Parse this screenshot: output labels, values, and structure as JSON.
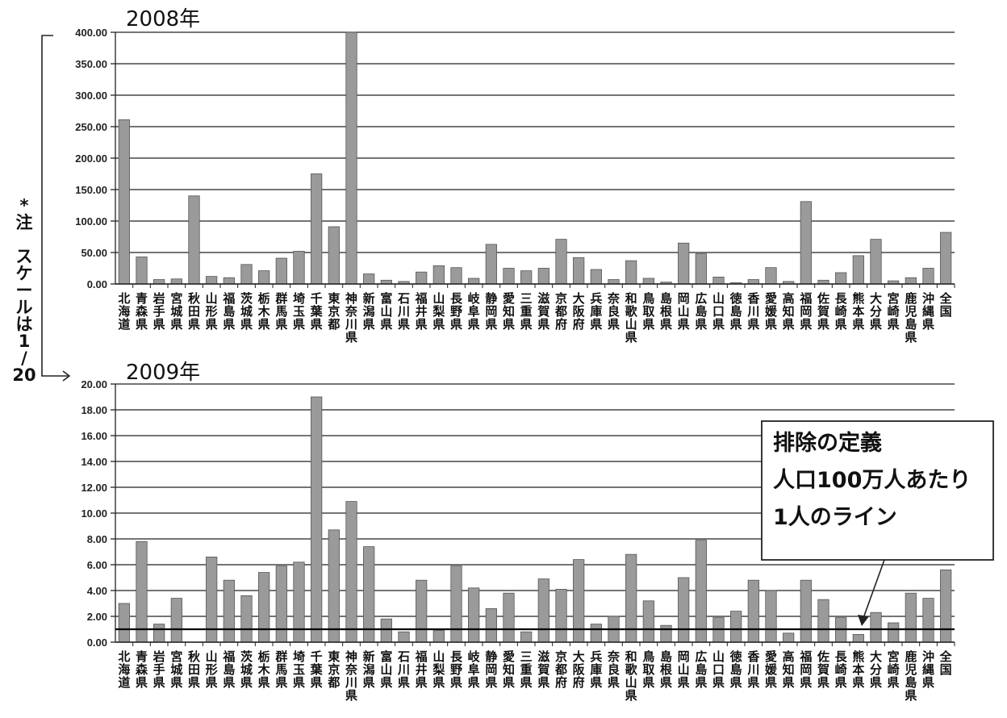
{
  "note": {
    "lines": [
      "*",
      "注",
      "",
      "ス",
      "ケ",
      "ー",
      "ル",
      "は",
      "1",
      "/",
      "20"
    ]
  },
  "callout": {
    "lines": [
      "排除の定義",
      "人口100万人あたり",
      "1人のライン"
    ]
  },
  "chart_data": [
    {
      "type": "bar",
      "title": "2008年",
      "xlabel": "",
      "ylabel": "",
      "ylim": [
        0,
        400
      ],
      "yticks": [
        "0.00",
        "50.00",
        "100.00",
        "150.00",
        "200.00",
        "250.00",
        "300.00",
        "350.00",
        "400.00"
      ],
      "grid": true,
      "bar_color": "#9a9a9a",
      "categories": [
        "北海道",
        "青森県",
        "岩手県",
        "宮城県",
        "秋田県",
        "山形県",
        "福島県",
        "茨城県",
        "栃木県",
        "群馬県",
        "埼玉県",
        "千葉県",
        "東京都",
        "神奈川県",
        "新潟県",
        "富山県",
        "石川県",
        "福井県",
        "山梨県",
        "長野県",
        "岐阜県",
        "静岡県",
        "愛知県",
        "三重県",
        "滋賀県",
        "京都府",
        "大阪府",
        "兵庫県",
        "奈良県",
        "和歌山県",
        "鳥取県",
        "島根県",
        "岡山県",
        "広島県",
        "山口県",
        "徳島県",
        "香川県",
        "愛媛県",
        "高知県",
        "福岡県",
        "佐賀県",
        "長崎県",
        "熊本県",
        "大分県",
        "宮崎県",
        "鹿児島県",
        "沖縄県",
        "全国"
      ],
      "values": [
        261,
        43,
        7,
        8,
        140,
        12,
        10,
        31,
        21,
        41,
        52,
        175,
        91,
        400,
        16,
        6,
        4,
        19,
        29,
        26,
        9,
        63,
        25,
        21,
        25,
        71,
        42,
        23,
        7,
        37,
        9,
        3,
        65,
        48,
        11,
        2,
        7,
        26,
        4,
        131,
        6,
        18,
        45,
        71,
        5,
        10,
        25,
        82
      ]
    },
    {
      "type": "bar",
      "title": "2009年",
      "xlabel": "",
      "ylabel": "",
      "ylim": [
        0,
        20
      ],
      "yticks": [
        "0.00",
        "2.00",
        "4.00",
        "6.00",
        "8.00",
        "10.00",
        "12.00",
        "14.00",
        "16.00",
        "18.00",
        "20.00"
      ],
      "grid": true,
      "bar_color": "#9a9a9a",
      "reference_line": 1.0,
      "categories": [
        "北海道",
        "青森県",
        "岩手県",
        "宮城県",
        "秋田県",
        "山形県",
        "福島県",
        "茨城県",
        "栃木県",
        "群馬県",
        "埼玉県",
        "千葉県",
        "東京都",
        "神奈川県",
        "新潟県",
        "富山県",
        "石川県",
        "福井県",
        "山梨県",
        "長野県",
        "岐阜県",
        "静岡県",
        "愛知県",
        "三重県",
        "滋賀県",
        "京都府",
        "大阪府",
        "兵庫県",
        "奈良県",
        "和歌山県",
        "鳥取県",
        "島根県",
        "岡山県",
        "広島県",
        "山口県",
        "徳島県",
        "香川県",
        "愛媛県",
        "高知県",
        "福岡県",
        "佐賀県",
        "長崎県",
        "熊本県",
        "大分県",
        "宮崎県",
        "鹿児島県",
        "沖縄県",
        "全国"
      ],
      "values": [
        3.0,
        7.8,
        1.4,
        3.4,
        0,
        6.6,
        4.8,
        3.6,
        5.4,
        5.9,
        6.2,
        19.0,
        8.7,
        10.9,
        7.4,
        1.8,
        0.8,
        4.8,
        0.9,
        5.9,
        4.2,
        2.6,
        3.8,
        0.8,
        4.9,
        4.1,
        6.4,
        1.4,
        2.0,
        6.8,
        3.2,
        1.3,
        5.0,
        7.9,
        1.9,
        2.4,
        4.8,
        4.0,
        0.7,
        4.8,
        3.3,
        1.9,
        0.6,
        2.3,
        1.5,
        3.8,
        3.4,
        5.6
      ]
    }
  ]
}
